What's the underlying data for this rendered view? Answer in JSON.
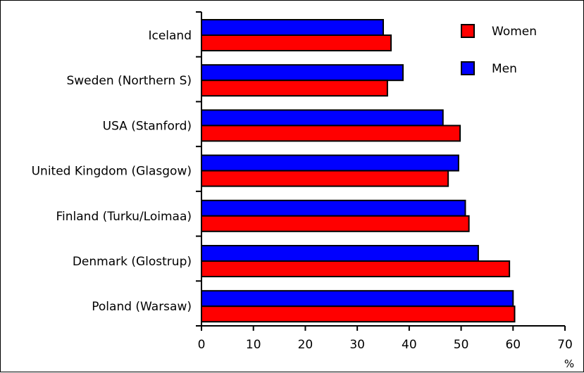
{
  "chart_data": {
    "type": "bar",
    "orientation": "horizontal",
    "categories": [
      "Iceland",
      "Sweden (Northern S)",
      "USA (Stanford)",
      "United Kingdom (Glasgow)",
      "Finland (Turku/Loimaa)",
      "Denmark (Glostrup)",
      "Poland (Warsaw)"
    ],
    "series": [
      {
        "name": "Men",
        "color": "#0000ff",
        "values": [
          35,
          38.8,
          46.5,
          49.5,
          50.8,
          53.3,
          60
        ]
      },
      {
        "name": "Women",
        "color": "#ff0000",
        "values": [
          36.5,
          35.8,
          49.8,
          47.5,
          51.5,
          59.3,
          60.3
        ]
      }
    ],
    "xlim": [
      0,
      70
    ],
    "xticks": [
      "0",
      "10",
      "20",
      "30",
      "40",
      "50",
      "60",
      "70"
    ],
    "xlabel": "%",
    "ylabel": "",
    "title": "",
    "legend": {
      "position": "top-right",
      "order": [
        "Women",
        "Men"
      ]
    },
    "grid": false
  }
}
